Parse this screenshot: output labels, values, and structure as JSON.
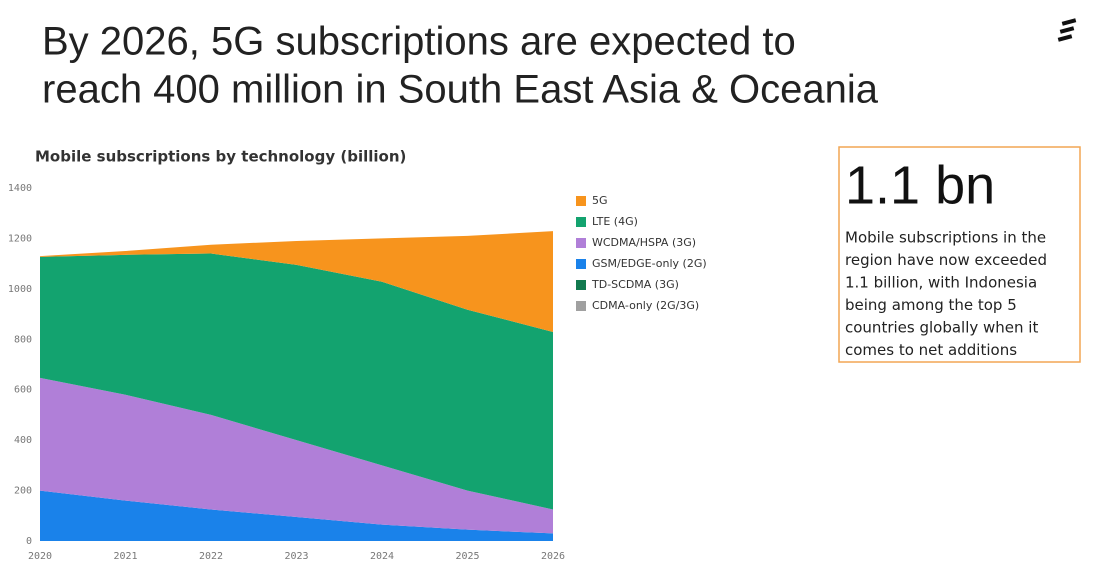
{
  "header": {
    "title": [
      "By 2026, 5G subscriptions are expected to",
      "reach 400 million in South East Asia & Oceania"
    ]
  },
  "chart_data": {
    "type": "stacked-area",
    "title": "Mobile subscriptions by technology (billion)",
    "x": [
      2020,
      2021,
      2022,
      2023,
      2024,
      2025,
      2026
    ],
    "xlim": [
      2020,
      2026
    ],
    "xticks": [
      2020,
      2021,
      2022,
      2023,
      2024,
      2025,
      2026
    ],
    "ylim": [
      0,
      1400
    ],
    "yticks": [
      0,
      200,
      400,
      600,
      800,
      1000,
      1200,
      1400
    ],
    "grid": false,
    "legend": "right",
    "series": [
      {
        "name": "5G",
        "color": "#f7941d",
        "values": [
          3,
          15,
          35,
          95,
          172,
          293,
          400
        ]
      },
      {
        "name": "LTE (4G)",
        "color": "#13a36f",
        "values": [
          480,
          555,
          640,
          695,
          728,
          717,
          704
        ]
      },
      {
        "name": "WCDMA/HSPA (3G)",
        "color": "#b07fd8",
        "values": [
          447,
          420,
          375,
          305,
          235,
          155,
          95
        ]
      },
      {
        "name": "GSM/EDGE-only (2G)",
        "color": "#1a82ea",
        "values": [
          200,
          160,
          125,
          95,
          65,
          45,
          30
        ]
      },
      {
        "name": "TD-SCDMA (3G)",
        "color": "#127a4f",
        "values": [
          0,
          0,
          0,
          0,
          0,
          0,
          0
        ]
      },
      {
        "name": "CDMA-only (2G/3G)",
        "color": "#a0a0a0",
        "values": [
          0,
          0,
          0,
          0,
          0,
          0,
          0
        ]
      }
    ]
  },
  "callout": {
    "stat": "1.1 bn",
    "lines": [
      "Mobile subscriptions in the",
      "region have now exceeded",
      "1.1 billion, with Indonesia",
      "being among the top 5",
      "countries globally when it",
      "comes to net additions"
    ]
  }
}
